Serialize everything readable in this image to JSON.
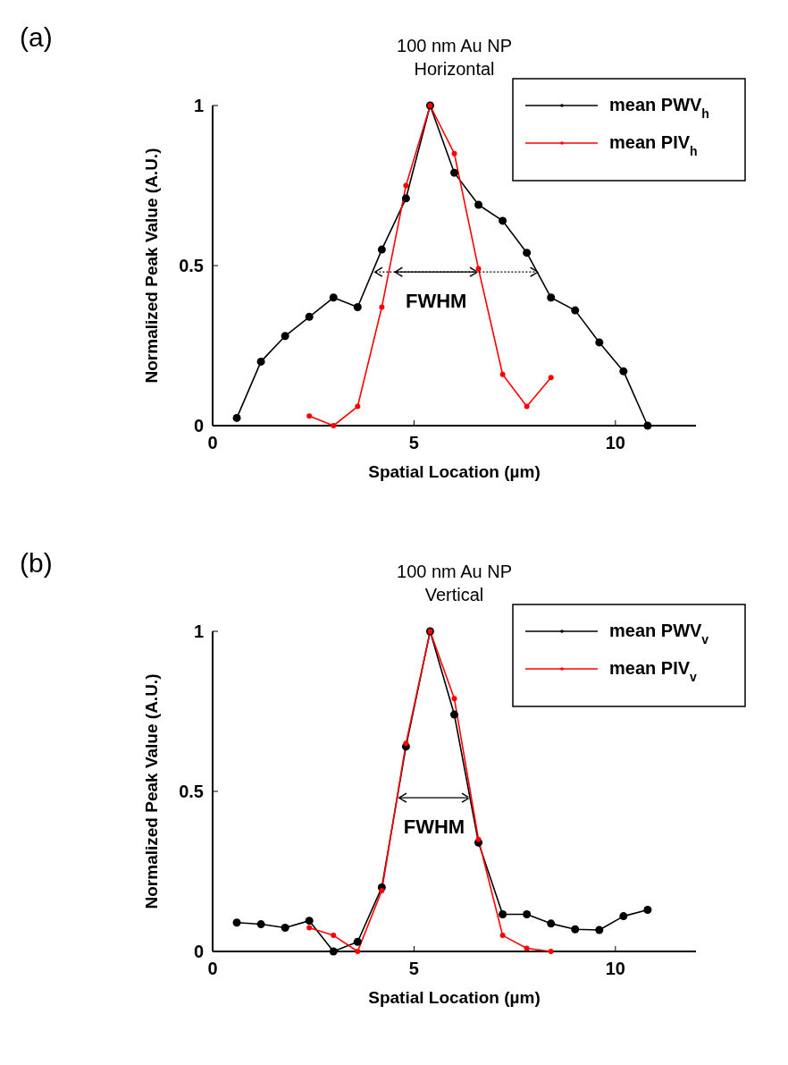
{
  "chart_data": [
    {
      "type": "line",
      "title": "100 nm Au NP",
      "subtitle": "Horizontal",
      "xlabel": "Spatial Location (µm)",
      "ylabel": "Normalized Peak Value (A.U.)",
      "xlim": [
        0,
        12
      ],
      "ylim": [
        0,
        1
      ],
      "xticks": [
        0,
        5,
        10
      ],
      "yticks": [
        0,
        0.5,
        1
      ],
      "grid": false,
      "legend": "top right",
      "marker": "circle",
      "line_style": "solid",
      "annotations": [
        "(a)",
        "FWHM"
      ],
      "series": [
        {
          "name": "mean PWV$_{h}$",
          "color": "#000000",
          "x": [
            0.6,
            1.2,
            1.8,
            2.4,
            3.0,
            3.6,
            4.2,
            4.8,
            5.4,
            6.0,
            6.6,
            7.2,
            7.8,
            8.4,
            9.0,
            9.6,
            10.2,
            10.8
          ],
          "values": [
            0.024,
            0.2,
            0.28,
            0.34,
            0.4,
            0.37,
            0.55,
            0.71,
            1.0,
            0.79,
            0.69,
            0.64,
            0.54,
            0.4,
            0.36,
            0.26,
            0.17,
            0
          ]
        },
        {
          "name": "mean PIV$_{h}$",
          "color": "#ff0000",
          "x": [
            2.4,
            3.0,
            3.6,
            4.2,
            4.8,
            5.4,
            6.0,
            6.6,
            7.2,
            7.8,
            8.4
          ],
          "values": [
            0.03,
            0,
            0.06,
            0.37,
            0.75,
            1.0,
            0.85,
            0.49,
            0.16,
            0.06,
            0.15
          ]
        }
      ]
    },
    {
      "type": "line",
      "title": "100 nm Au NP",
      "subtitle": "Vertical",
      "xlabel": "Spatial Location (µm)",
      "ylabel": "Normalized Peak Value (A.U.)",
      "xlim": [
        0,
        12
      ],
      "ylim": [
        0,
        1
      ],
      "xticks": [
        0,
        5,
        10
      ],
      "yticks": [
        0,
        0.5,
        1
      ],
      "grid": false,
      "legend": "top right",
      "marker": "circle",
      "line_style": "solid",
      "annotations": [
        "(b)",
        "FWHM"
      ],
      "series": [
        {
          "name": "mean PWV$_{v}$",
          "color": "#000000",
          "x": [
            0.6,
            1.2,
            1.8,
            2.4,
            3.0,
            3.6,
            4.2,
            4.8,
            5.4,
            6.0,
            6.6,
            7.2,
            7.8,
            8.4,
            9.0,
            9.6,
            10.2,
            10.8
          ],
          "values": [
            0.09,
            0.085,
            0.074,
            0.096,
            0,
            0.03,
            0.2,
            0.64,
            1.0,
            0.74,
            0.34,
            0.116,
            0.116,
            0.087,
            0.069,
            0.067,
            0.11,
            0.13
          ]
        },
        {
          "name": "mean PIV$_{v}$",
          "color": "#ff0000",
          "x": [
            2.4,
            3.0,
            3.6,
            4.2,
            4.8,
            5.4,
            6.0,
            6.6,
            7.2,
            7.8,
            8.4
          ],
          "values": [
            0.074,
            0.05,
            0,
            0.19,
            0.65,
            1.0,
            0.79,
            0.35,
            0.05,
            0.01,
            0
          ]
        }
      ]
    }
  ]
}
